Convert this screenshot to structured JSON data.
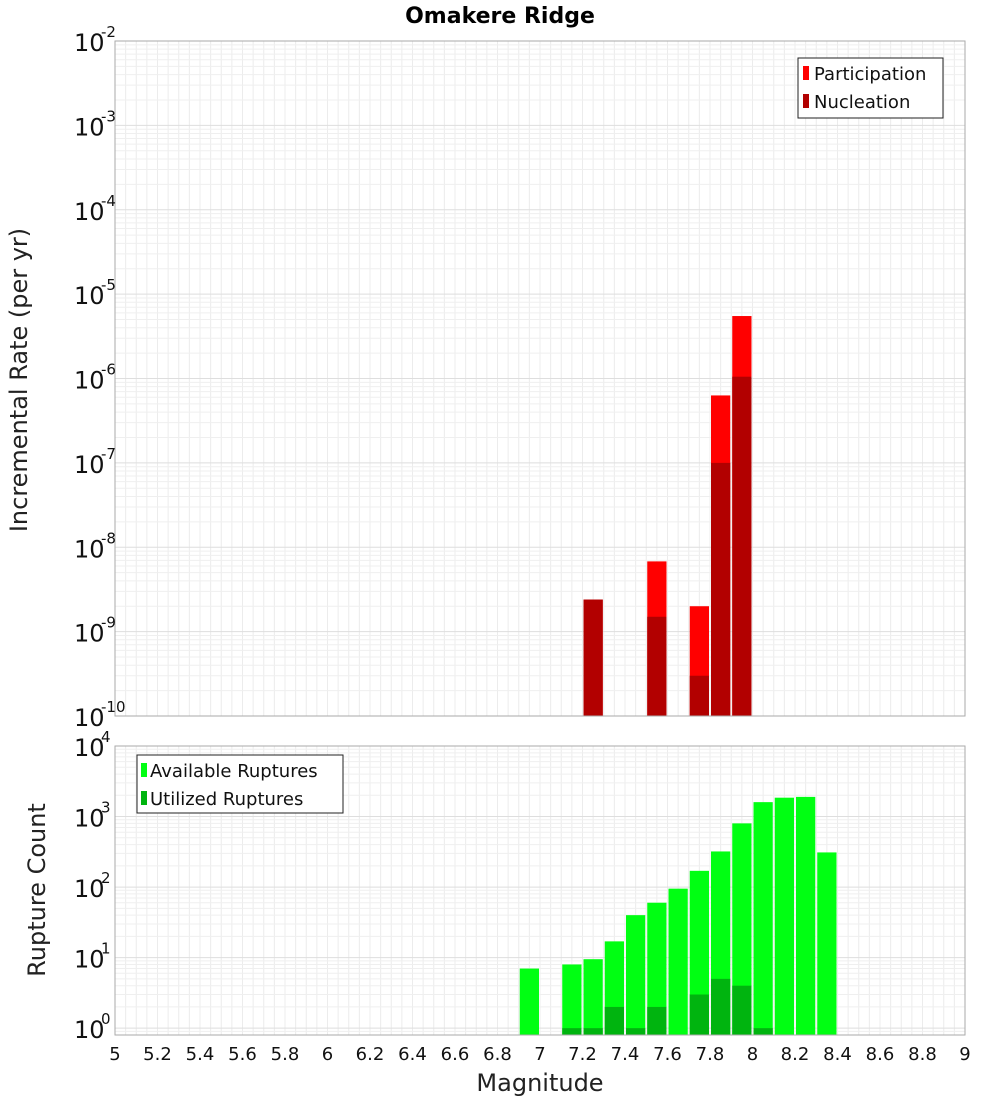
{
  "chart_data": [
    {
      "type": "bar",
      "title": "Omakere Ridge",
      "xlabel": "",
      "ylabel": "Incremental Rate (per yr)",
      "yscale": "log",
      "ylim": [
        1e-10,
        0.01
      ],
      "xlim": [
        5,
        9
      ],
      "grid": true,
      "legend_position": "top-right",
      "bin_width": 0.1,
      "series": [
        {
          "name": "Participation",
          "color": "#ff0000",
          "x": [
            7.25,
            7.55,
            7.75,
            7.85,
            7.95
          ],
          "values": [
            2.4e-09,
            6.8e-09,
            2e-09,
            6.3e-07,
            5.5e-06
          ]
        },
        {
          "name": "Nucleation",
          "color": "#b20000",
          "x": [
            7.25,
            7.55,
            7.75,
            7.85,
            7.95
          ],
          "values": [
            2.4e-09,
            1.5e-09,
            3e-10,
            1e-07,
            1.05e-06
          ]
        }
      ]
    },
    {
      "type": "bar",
      "xlabel": "Magnitude",
      "ylabel": "Rupture Count",
      "yscale": "log",
      "ylim": [
        0.8,
        10000
      ],
      "xlim": [
        5,
        9
      ],
      "xticks": [
        "5",
        "5.2",
        "5.4",
        "5.6",
        "5.8",
        "6",
        "6.2",
        "6.4",
        "6.6",
        "6.8",
        "7",
        "7.2",
        "7.4",
        "7.6",
        "7.8",
        "8",
        "8.2",
        "8.4",
        "8.6",
        "8.8",
        "9"
      ],
      "grid": true,
      "legend_position": "top-left",
      "bin_width": 0.1,
      "series": [
        {
          "name": "Available Ruptures",
          "color": "#00ff12",
          "x": [
            6.95,
            7.15,
            7.25,
            7.35,
            7.45,
            7.55,
            7.65,
            7.75,
            7.85,
            7.95,
            8.05,
            8.15,
            8.25,
            8.35
          ],
          "values": [
            7,
            8,
            9.5,
            17,
            40,
            60,
            95,
            170,
            320,
            800,
            1600,
            1850,
            1900,
            310
          ]
        },
        {
          "name": "Utilized Ruptures",
          "color": "#00b40f",
          "x": [
            7.15,
            7.25,
            7.35,
            7.45,
            7.55,
            7.75,
            7.85,
            7.95,
            8.05
          ],
          "values": [
            1,
            1,
            2,
            1,
            2,
            3,
            5,
            4,
            1
          ]
        }
      ]
    }
  ]
}
